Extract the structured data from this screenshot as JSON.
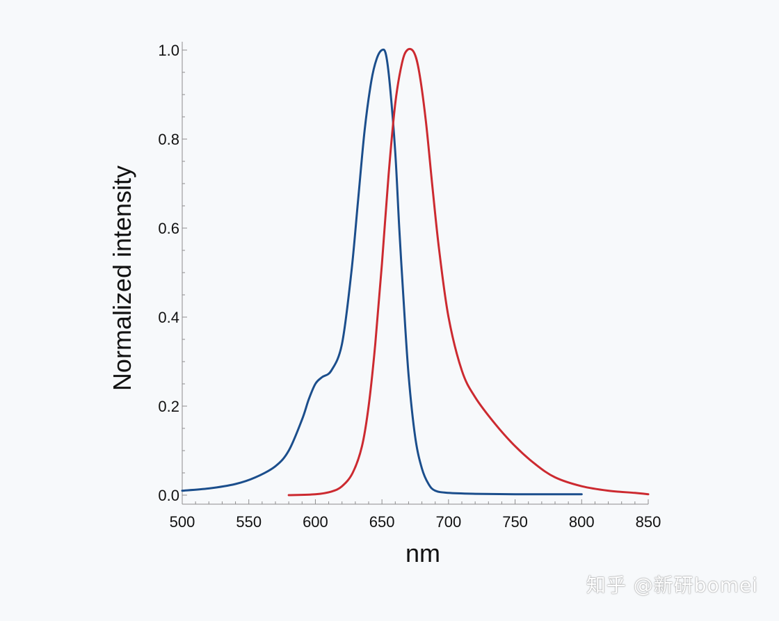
{
  "watermark": "知乎 @新研bomei",
  "colors": {
    "background": "#f7f9fb",
    "axis": "#8c8c8c",
    "blue": "#1b4e8c",
    "red": "#cc2a30"
  },
  "chart_data": {
    "type": "line",
    "title": "",
    "xlabel": "nm",
    "ylabel": "Normalized intensity",
    "xlim": [
      500,
      850
    ],
    "ylim": [
      0,
      1.0
    ],
    "xticks": [
      500,
      550,
      600,
      650,
      700,
      750,
      800,
      850
    ],
    "yticks": [
      0.0,
      0.2,
      0.4,
      0.6,
      0.8,
      1.0
    ],
    "ytick_labels": [
      "0.0",
      "0.2",
      "0.4",
      "0.6",
      "0.8",
      "1.0"
    ],
    "grid": false,
    "legend": "none",
    "series": [
      {
        "color": "#1b4e8c",
        "x": [
          500,
          520,
          540,
          555,
          570,
          580,
          590,
          595,
          600,
          605,
          612,
          620,
          627,
          632,
          637,
          642,
          646,
          650,
          653,
          656,
          660,
          663,
          666,
          670,
          675,
          680,
          685,
          690,
          700,
          720,
          750,
          800
        ],
        "y": [
          0.01,
          0.015,
          0.025,
          0.04,
          0.065,
          0.1,
          0.17,
          0.215,
          0.25,
          0.265,
          0.28,
          0.34,
          0.5,
          0.66,
          0.82,
          0.93,
          0.98,
          1.0,
          0.99,
          0.92,
          0.77,
          0.6,
          0.45,
          0.27,
          0.13,
          0.06,
          0.025,
          0.01,
          0.005,
          0.003,
          0.002,
          0.002
        ]
      },
      {
        "color": "#cc2a30",
        "x": [
          580,
          600,
          612,
          620,
          628,
          635,
          640,
          645,
          650,
          655,
          660,
          665,
          669,
          674,
          678,
          683,
          688,
          693,
          700,
          710,
          720,
          735,
          750,
          765,
          780,
          800,
          820,
          840,
          850
        ],
        "y": [
          0.0,
          0.002,
          0.008,
          0.02,
          0.05,
          0.11,
          0.2,
          0.34,
          0.52,
          0.72,
          0.88,
          0.97,
          1.0,
          0.995,
          0.95,
          0.84,
          0.69,
          0.55,
          0.4,
          0.28,
          0.22,
          0.16,
          0.11,
          0.07,
          0.04,
          0.02,
          0.01,
          0.005,
          0.002
        ]
      }
    ]
  }
}
